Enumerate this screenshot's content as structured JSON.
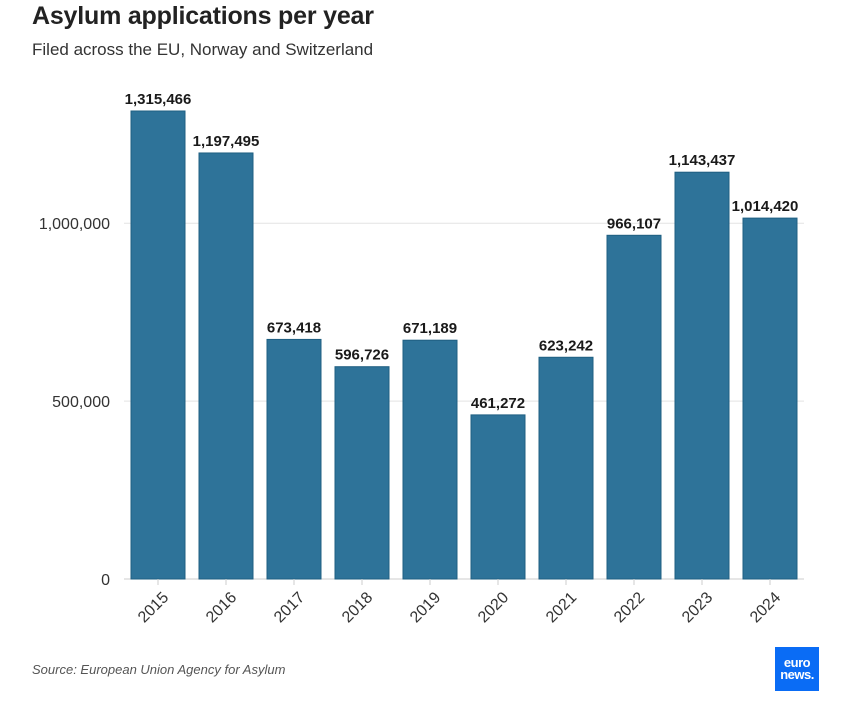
{
  "header": {
    "title": "Asylum applications per year",
    "subtitle": "Filed across the EU, Norway and Switzerland"
  },
  "footer": {
    "source": "Source: European Union Agency for Asylum",
    "logo_line1": "euro",
    "logo_line2": "news."
  },
  "colors": {
    "bar": "#2e7399",
    "bar_stroke": "#1f5f82",
    "grid": "#e3e3e3",
    "axis": "#cccccc"
  },
  "chart_data": {
    "type": "bar",
    "title": "Asylum applications per year",
    "subtitle": "Filed across the EU, Norway and Switzerland",
    "xlabel": "",
    "ylabel": "",
    "categories": [
      "2015",
      "2016",
      "2017",
      "2018",
      "2019",
      "2020",
      "2021",
      "2022",
      "2023",
      "2024"
    ],
    "values": [
      1315466,
      1197495,
      673418,
      596726,
      671189,
      461272,
      623242,
      966107,
      1143437,
      1014420
    ],
    "data_labels": [
      "1,315,466",
      "1,197,495",
      "673,418",
      "596,726",
      "671,189",
      "461,272",
      "623,242",
      "966,107",
      "1,143,437",
      "1,014,420"
    ],
    "yticks": [
      0,
      500000,
      1000000
    ],
    "ytick_labels": [
      "0",
      "500,000",
      "1,000,000"
    ],
    "ylim": [
      0,
      1315466
    ],
    "grid": true,
    "legend": "none"
  }
}
